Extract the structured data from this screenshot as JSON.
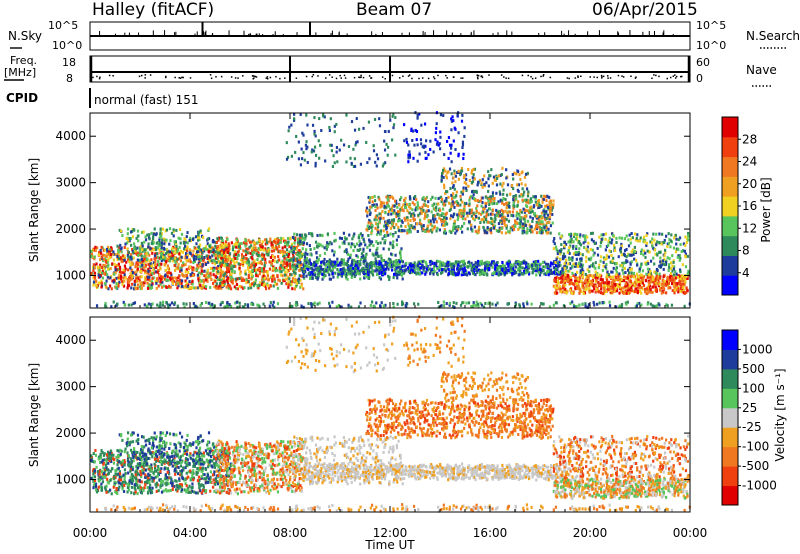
{
  "header": {
    "station": "Halley (fitACF)",
    "beam": "Beam 07",
    "date": "06/Apr/2015"
  },
  "strips": {
    "nsky_label": "N.Sky",
    "nsky_ticks": [
      "10^5",
      "10^0"
    ],
    "nsearch_label": "N.Search",
    "nsearch_ticks": [
      "10^5",
      "10^0"
    ],
    "freq_label_top": "Freq.",
    "freq_label_bottom": "[MHz]",
    "freq_ticks": [
      "18",
      "8"
    ],
    "nave_label": "Nave",
    "nave_ticks": [
      "60",
      "0"
    ],
    "cpid_label": "CPID",
    "cpid_value": "normal (fast) 151"
  },
  "colors": {
    "power": [
      "#0000ff",
      "#1e3c9c",
      "#2e8a5a",
      "#58c45c",
      "#f0d020",
      "#f0a020",
      "#f07820",
      "#f04010",
      "#e00000"
    ],
    "velocity": [
      "#e00000",
      "#f04010",
      "#f07820",
      "#f0a020",
      "#c8c8c8",
      "#58c45c",
      "#2e8a5a",
      "#1e3c9c",
      "#0000ff"
    ]
  },
  "chart_data": [
    {
      "type": "heatmap",
      "panel": "power",
      "ylabel": "Slant Range [km]",
      "ylim": [
        300,
        4500
      ],
      "yticks": [
        "1000",
        "2000",
        "3000",
        "4000"
      ],
      "colorbar_label": "Power [dB]",
      "colorbar_ticks": [
        "4",
        "8",
        "12",
        "16",
        "20",
        "24",
        "28"
      ],
      "colorbar_range": [
        0,
        32
      ]
    },
    {
      "type": "heatmap",
      "panel": "velocity",
      "ylabel": "Slant Range [km]",
      "ylim": [
        300,
        4500
      ],
      "yticks": [
        "1000",
        "2000",
        "3000",
        "4000"
      ],
      "colorbar_label": "Velocity [m s⁻¹]",
      "colorbar_ticks": [
        "1000",
        "500",
        "100",
        "25",
        "-25",
        "-100",
        "-500",
        "-1000"
      ]
    }
  ],
  "xaxis": {
    "label": "Time UT",
    "ticks": [
      "00:00",
      "04:00",
      "08:00",
      "12:00",
      "16:00",
      "20:00",
      "00:00"
    ]
  }
}
